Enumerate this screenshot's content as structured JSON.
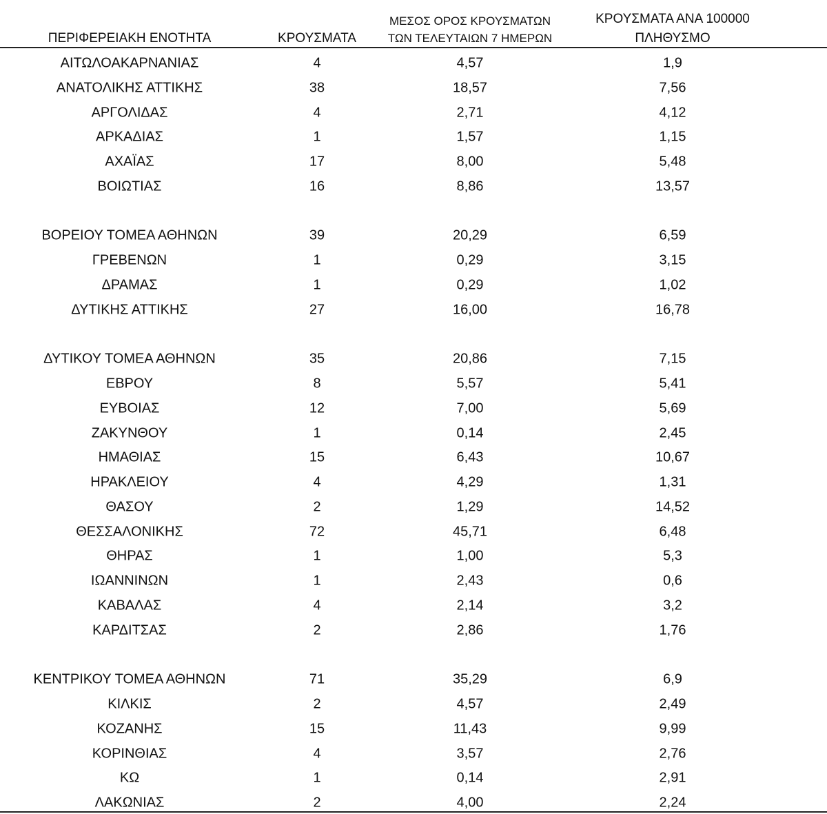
{
  "table": {
    "headers": [
      {
        "lines": [
          "ΠΕΡΙΦΕΡΕΙΑΚΗ ΕΝΟΤΗΤΑ"
        ]
      },
      {
        "lines": [
          "ΚΡΟΥΣΜΑΤΑ"
        ]
      },
      {
        "lines": [
          "ΜΕΣΟΣ ΟΡΟΣ ΚΡΟΥΣΜΑΤΩΝ",
          "ΤΩΝ ΤΕΛΕΥΤΑΙΩΝ 7 ΗΜΕΡΩΝ"
        ]
      },
      {
        "lines": [
          "ΚΡΟΥΣΜΑΤΑ ΑΝΑ 100000",
          "ΠΛΗΘΥΣΜΟ"
        ]
      }
    ],
    "groups": [
      [
        [
          "ΑΙΤΩΛΟΑΚΑΡΝΑΝΙΑΣ",
          "4",
          "4,57",
          "1,9"
        ],
        [
          "ΑΝΑΤΟΛΙΚΗΣ ΑΤΤΙΚΗΣ",
          "38",
          "18,57",
          "7,56"
        ],
        [
          "ΑΡΓΟΛΙΔΑΣ",
          "4",
          "2,71",
          "4,12"
        ],
        [
          "ΑΡΚΑΔΙΑΣ",
          "1",
          "1,57",
          "1,15"
        ],
        [
          "ΑΧΑΪΑΣ",
          "17",
          "8,00",
          "5,48"
        ],
        [
          "ΒΟΙΩΤΙΑΣ",
          "16",
          "8,86",
          "13,57"
        ]
      ],
      [
        [
          "ΒΟΡΕΙΟΥ ΤΟΜΕΑ ΑΘΗΝΩΝ",
          "39",
          "20,29",
          "6,59"
        ],
        [
          "ΓΡΕΒΕΝΩΝ",
          "1",
          "0,29",
          "3,15"
        ],
        [
          "ΔΡΑΜΑΣ",
          "1",
          "0,29",
          "1,02"
        ],
        [
          "ΔΥΤΙΚΗΣ ΑΤΤΙΚΗΣ",
          "27",
          "16,00",
          "16,78"
        ]
      ],
      [
        [
          "ΔΥΤΙΚΟΥ ΤΟΜΕΑ ΑΘΗΝΩΝ",
          "35",
          "20,86",
          "7,15"
        ],
        [
          "ΕΒΡΟΥ",
          "8",
          "5,57",
          "5,41"
        ],
        [
          "ΕΥΒΟΙΑΣ",
          "12",
          "7,00",
          "5,69"
        ],
        [
          "ΖΑΚΥΝΘΟΥ",
          "1",
          "0,14",
          "2,45"
        ],
        [
          "ΗΜΑΘΙΑΣ",
          "15",
          "6,43",
          "10,67"
        ],
        [
          "ΗΡΑΚΛΕΙΟΥ",
          "4",
          "4,29",
          "1,31"
        ],
        [
          "ΘΑΣΟΥ",
          "2",
          "1,29",
          "14,52"
        ],
        [
          "ΘΕΣΣΑΛΟΝΙΚΗΣ",
          "72",
          "45,71",
          "6,48"
        ],
        [
          "ΘΗΡΑΣ",
          "1",
          "1,00",
          "5,3"
        ],
        [
          "ΙΩΑΝΝΙΝΩΝ",
          "1",
          "2,43",
          "0,6"
        ],
        [
          "ΚΑΒΑΛΑΣ",
          "4",
          "2,14",
          "3,2"
        ],
        [
          "ΚΑΡΔΙΤΣΑΣ",
          "2",
          "2,86",
          "1,76"
        ]
      ],
      [
        [
          "ΚΕΝΤΡΙΚΟΥ ΤΟΜΕΑ ΑΘΗΝΩΝ",
          "71",
          "35,29",
          "6,9"
        ],
        [
          "ΚΙΛΚΙΣ",
          "2",
          "4,57",
          "2,49"
        ],
        [
          "ΚΟΖΑΝΗΣ",
          "15",
          "11,43",
          "9,99"
        ],
        [
          "ΚΟΡΙΝΘΙΑΣ",
          "4",
          "3,57",
          "2,76"
        ],
        [
          "ΚΩ",
          "1",
          "0,14",
          "2,91"
        ],
        [
          "ΛΑΚΩΝΙΑΣ",
          "2",
          "4,00",
          "2,24"
        ]
      ]
    ]
  }
}
